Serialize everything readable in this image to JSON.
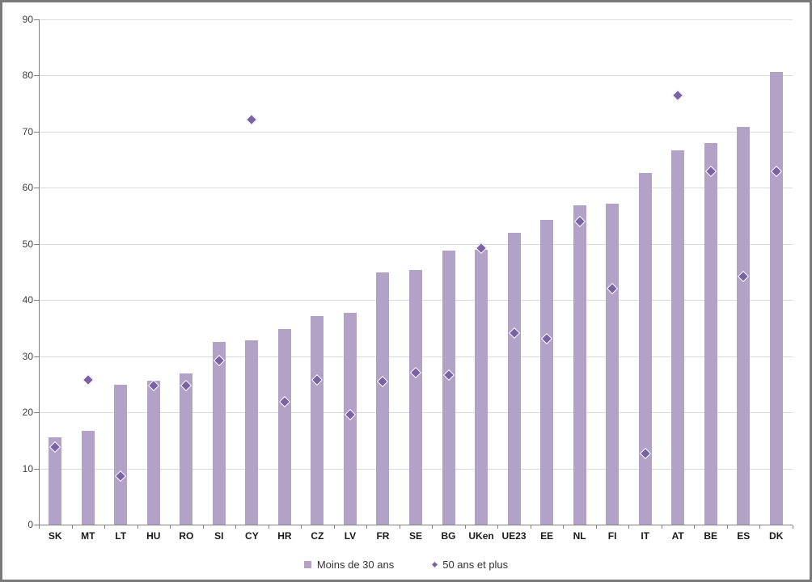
{
  "chart_data": {
    "type": "bar",
    "title": "",
    "categories": [
      "SK",
      "MT",
      "LT",
      "HU",
      "RO",
      "SI",
      "CY",
      "HR",
      "CZ",
      "LV",
      "FR",
      "SE",
      "BG",
      "UKen",
      "UE23",
      "EE",
      "NL",
      "FI",
      "IT",
      "AT",
      "BE",
      "ES",
      "DK"
    ],
    "series": [
      {
        "name": "Moins de 30 ans",
        "type": "bar",
        "color": "#b3a2c7",
        "values": [
          15.6,
          16.7,
          24.9,
          25.6,
          26.9,
          32.6,
          32.9,
          34.9,
          37.2,
          37.8,
          45.0,
          45.4,
          48.8,
          49.0,
          52.0,
          54.3,
          56.9,
          57.1,
          62.7,
          66.7,
          68.0,
          70.9,
          80.6
        ]
      },
      {
        "name": "50 ans et plus",
        "type": "scatter",
        "marker": "diamond",
        "color": "#7a63a4",
        "values": [
          13.8,
          25.8,
          8.7,
          24.7,
          24.7,
          29.3,
          72.2,
          21.9,
          25.8,
          19.6,
          25.5,
          27.1,
          26.7,
          49.3,
          34.2,
          33.1,
          54.0,
          42.1,
          12.7,
          76.4,
          63.0,
          44.2,
          63.0
        ]
      }
    ],
    "ylim": [
      0,
      90
    ],
    "yticks": [
      0,
      10,
      20,
      30,
      40,
      50,
      60,
      70,
      80,
      90
    ],
    "grid": true,
    "legend_position": "bottom",
    "colors": {
      "bar_fill": "#b3a2c7",
      "marker_fill": "#7a63a4",
      "marker_outline": "#ffffff",
      "gridline": "#d9d9d9",
      "axis": "#808080",
      "frame_border": "#7a7a7a",
      "background": "#ffffff"
    }
  }
}
